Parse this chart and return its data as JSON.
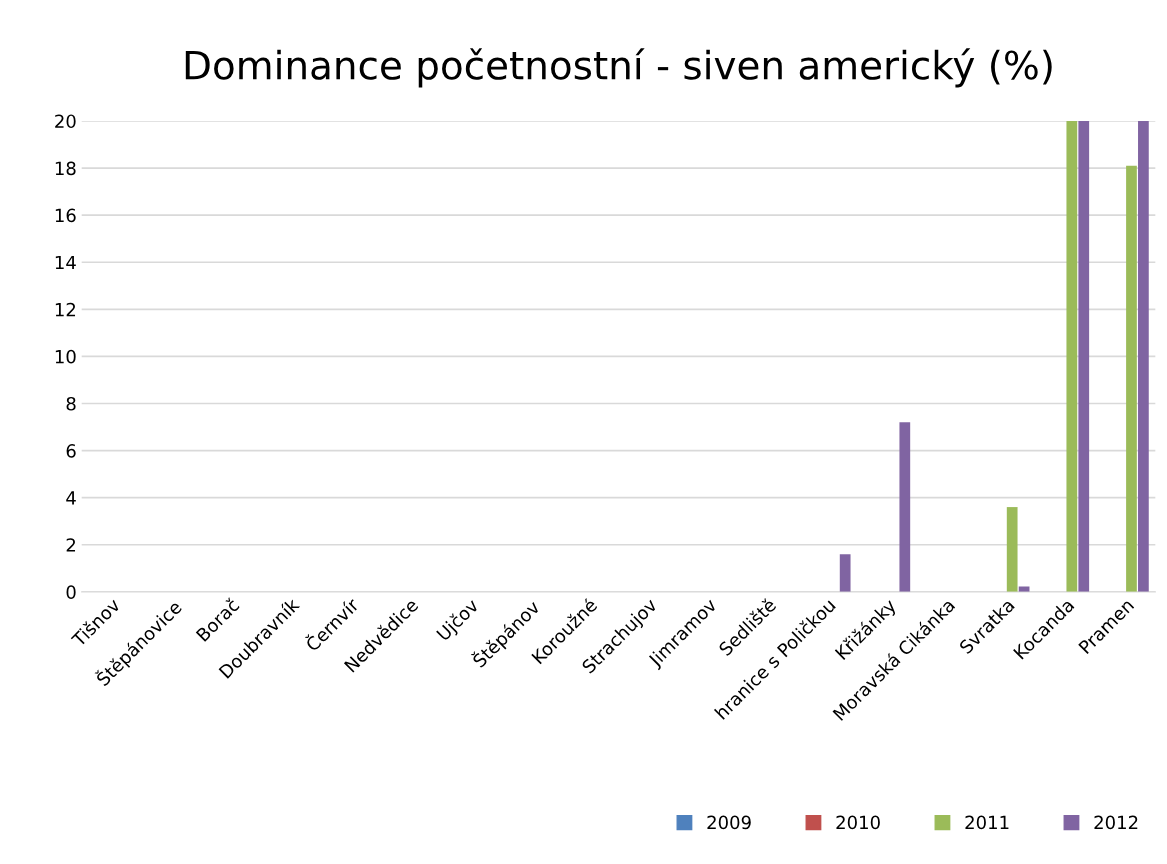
{
  "chart_data": {
    "type": "bar",
    "title": "Dominance početnostní - siven americký (%)",
    "categories": [
      "Tišnov",
      "Štěpánovice",
      "Borač",
      "Doubravník",
      "Černvír",
      "Nedvědice",
      "Ujčov",
      "Štěpánov",
      "Koroužné",
      "Strachujov",
      "Jimramov",
      "Sedliště",
      "hranice s Poličkou",
      "Křižánky",
      "Moravská Cikánka",
      "Svratka",
      "Kocanda",
      "Pramen"
    ],
    "series": [
      {
        "name": "2009",
        "color": "#4f81bd",
        "values": [
          0,
          0,
          0,
          0,
          0,
          0,
          0,
          0,
          0,
          0,
          0,
          0,
          0,
          0,
          0,
          0,
          0,
          0
        ]
      },
      {
        "name": "2010",
        "color": "#c0504d",
        "values": [
          0,
          0,
          0,
          0,
          0,
          0,
          0,
          0,
          0,
          0,
          0,
          0,
          0,
          0,
          0,
          0,
          0,
          0
        ]
      },
      {
        "name": "2011",
        "color": "#9bbb59",
        "values": [
          0,
          0,
          0,
          0,
          0,
          0,
          0,
          0,
          0,
          0,
          0,
          0,
          0,
          0,
          0,
          3.6,
          20,
          18.1
        ]
      },
      {
        "name": "2012",
        "color": "#8064a2",
        "values": [
          0,
          0,
          0,
          0,
          0,
          0,
          0,
          0,
          0,
          0,
          0,
          0,
          1.6,
          7.2,
          0,
          0.23,
          20,
          20
        ]
      }
    ],
    "ylim": [
      0,
      20
    ],
    "yticks": [
      0,
      2,
      4,
      6,
      8,
      10,
      12,
      14,
      16,
      18,
      20
    ],
    "grid": "y",
    "legend": "bottom right"
  }
}
